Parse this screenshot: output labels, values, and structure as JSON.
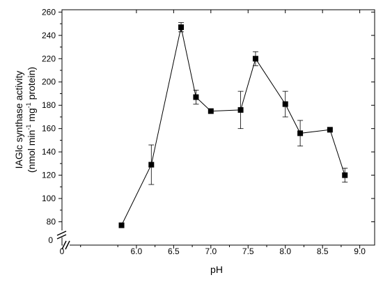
{
  "chart_data": {
    "type": "line",
    "xlabel": "pH",
    "ylabel_line1": "IAGlc synthase activity",
    "ylabel_line2_parts": [
      "(nmol min",
      "-1",
      " mg",
      "-1",
      " protein)"
    ],
    "xlim": [
      5.0,
      9.2
    ],
    "ylim": [
      60,
      262
    ],
    "y_axis_break": true,
    "x_ticks": [
      6.0,
      6.5,
      7.0,
      7.5,
      8.0,
      8.5,
      9.0
    ],
    "x_tick_labels": [
      "6.0",
      "6.5",
      "7.0",
      "7.5",
      "8.0",
      "8.5",
      "9.0"
    ],
    "x_zero_label": "0",
    "y_ticks": [
      80,
      100,
      120,
      140,
      160,
      180,
      200,
      220,
      240,
      260
    ],
    "y_tick_labels": [
      "80",
      "100",
      "120",
      "140",
      "160",
      "180",
      "200",
      "220",
      "240",
      "260"
    ],
    "y_zero_label": "0",
    "grid": false,
    "series": [
      {
        "x": [
          5.8,
          6.2,
          6.6,
          6.8,
          7.0,
          7.4,
          7.6,
          8.0,
          8.2,
          8.6,
          8.8
        ],
        "y": [
          77,
          129,
          247,
          187,
          175,
          176,
          220,
          181,
          156,
          159,
          120
        ],
        "err": [
          0,
          17,
          4,
          6,
          0,
          16,
          6,
          11,
          11,
          0,
          6
        ]
      }
    ],
    "colors": {
      "line": "#000000",
      "marker": "#000000"
    }
  }
}
